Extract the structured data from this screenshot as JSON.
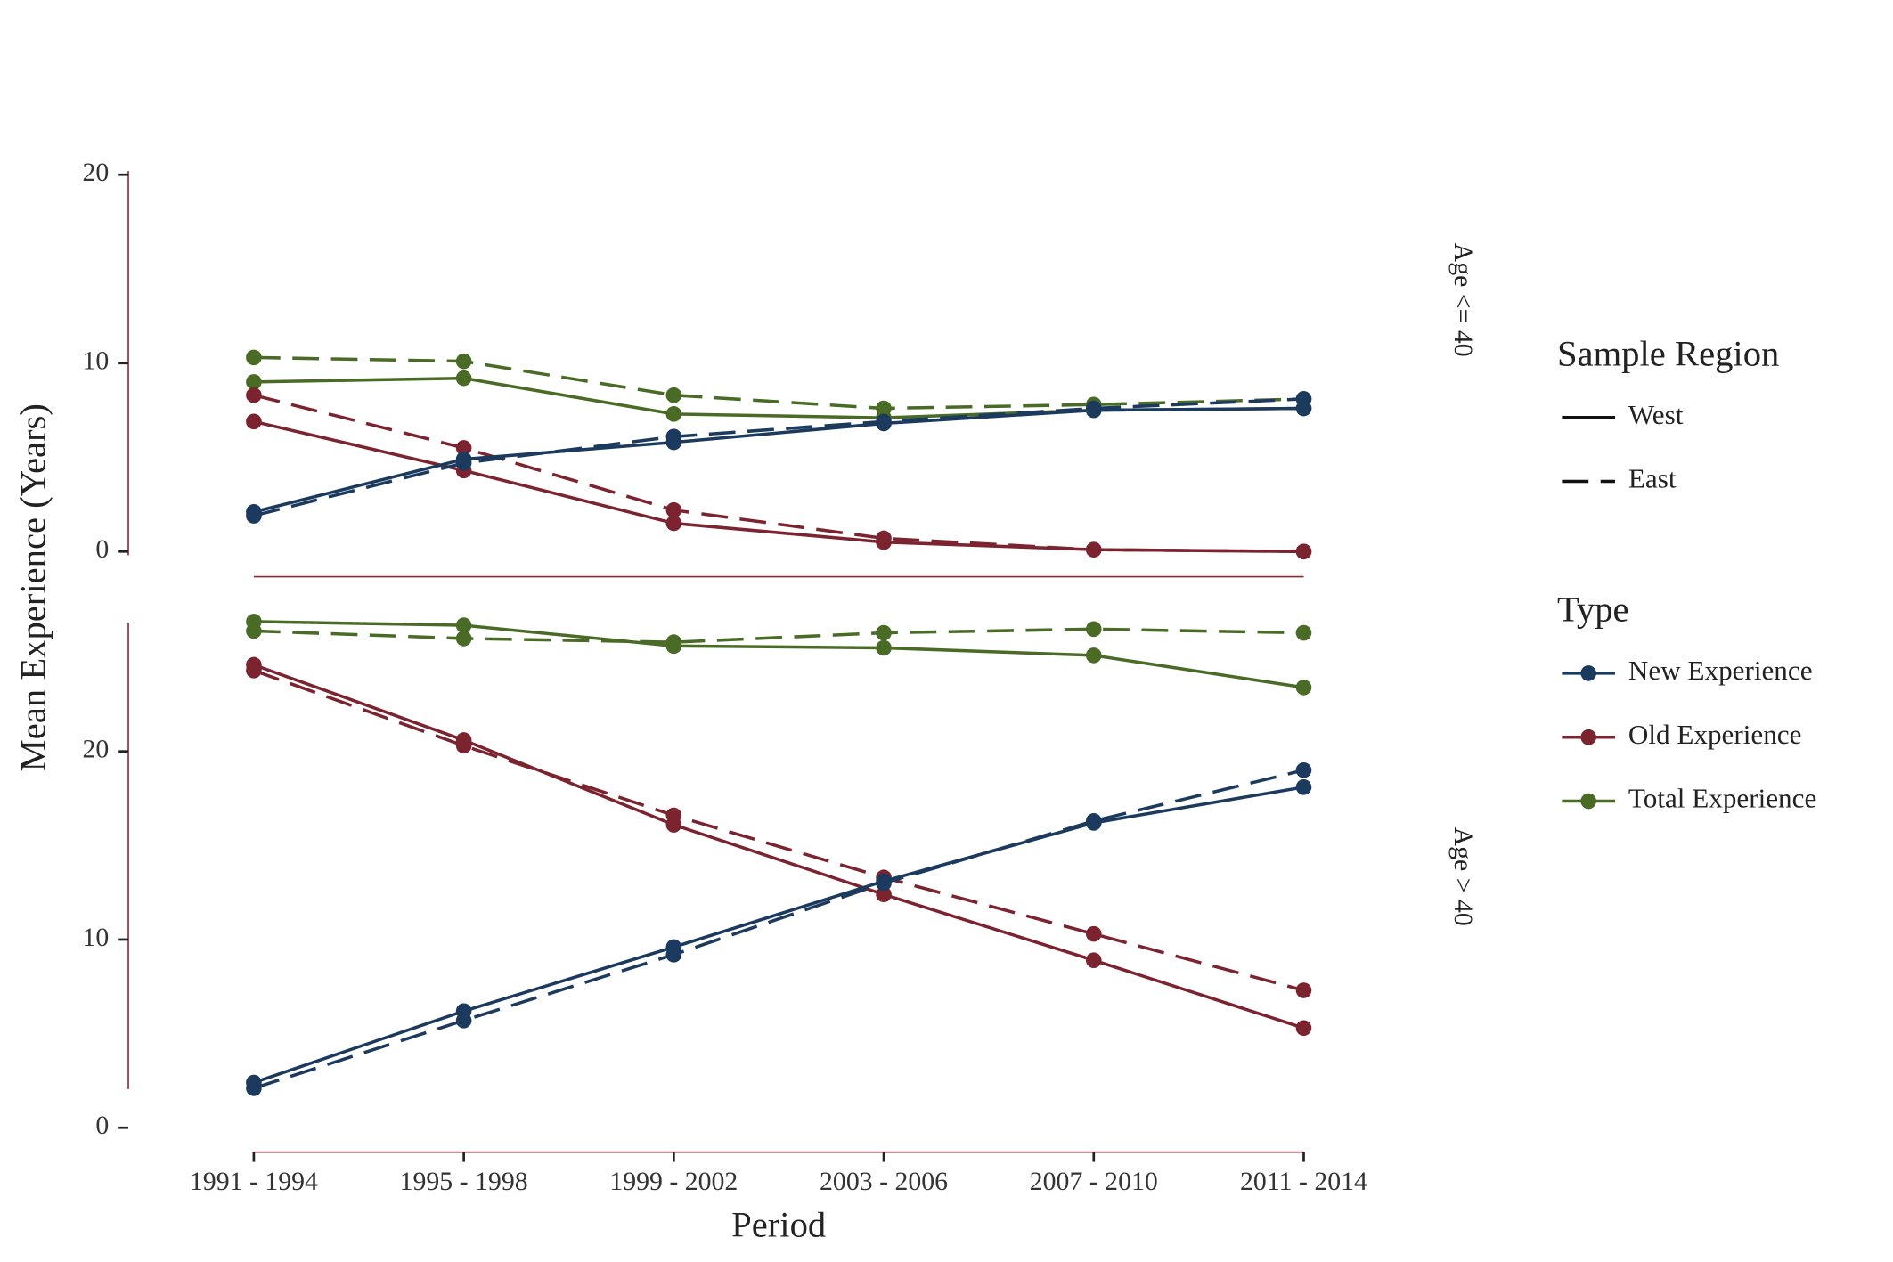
{
  "chart_data": {
    "type": "line",
    "x_label": "Period",
    "y_label": "Mean Experience (Years)",
    "categories": [
      "1991 - 1994",
      "1995 - 1998",
      "1999 - 2002",
      "2003 - 2006",
      "2007 - 2010",
      "2011 - 2014"
    ],
    "region_legend": {
      "title": "Sample Region",
      "entries": [
        {
          "name": "West",
          "dash": "solid"
        },
        {
          "name": "East",
          "dash": "dashed"
        }
      ]
    },
    "type_legend": {
      "title": "Type",
      "entries": [
        {
          "name": "New Experience",
          "color": "#1b3a5e"
        },
        {
          "name": "Old Experience",
          "color": "#7c2330"
        },
        {
          "name": "Total Experience",
          "color": "#4a6b26"
        }
      ]
    },
    "facets": [
      {
        "label": "Age <= 40",
        "ylim": [
          -1.4,
          23
        ],
        "yticks": [
          0,
          10,
          20
        ],
        "series": [
          {
            "color": "#4a6b26",
            "dash": "solid",
            "values": [
              9.0,
              9.2,
              7.3,
              7.1,
              7.5,
              7.6
            ]
          },
          {
            "color": "#4a6b26",
            "dash": "dashed",
            "values": [
              10.3,
              10.1,
              8.3,
              7.6,
              7.8,
              8.1
            ]
          },
          {
            "color": "#7c2330",
            "dash": "solid",
            "values": [
              6.9,
              4.3,
              1.5,
              0.5,
              0.1,
              0.0
            ]
          },
          {
            "color": "#7c2330",
            "dash": "dashed",
            "values": [
              8.3,
              5.5,
              2.2,
              0.7,
              0.1,
              0.0
            ]
          },
          {
            "color": "#1b3a5e",
            "dash": "solid",
            "values": [
              2.1,
              4.9,
              5.8,
              6.8,
              7.5,
              7.6
            ]
          },
          {
            "color": "#1b3a5e",
            "dash": "dashed",
            "values": [
              1.9,
              4.7,
              6.1,
              6.9,
              7.6,
              8.1
            ]
          }
        ]
      },
      {
        "label": "Age > 40",
        "ylim": [
          -1.3,
          28
        ],
        "yticks": [
          0,
          10,
          20
        ],
        "series": [
          {
            "color": "#4a6b26",
            "dash": "solid",
            "values": [
              26.9,
              26.7,
              25.6,
              25.5,
              25.1,
              23.4
            ]
          },
          {
            "color": "#4a6b26",
            "dash": "dashed",
            "values": [
              26.4,
              26.0,
              25.8,
              26.3,
              26.5,
              26.3
            ]
          },
          {
            "color": "#7c2330",
            "dash": "solid",
            "values": [
              24.6,
              20.6,
              16.1,
              12.4,
              8.9,
              5.3
            ]
          },
          {
            "color": "#7c2330",
            "dash": "dashed",
            "values": [
              24.3,
              20.3,
              16.6,
              13.3,
              10.3,
              7.3
            ]
          },
          {
            "color": "#1b3a5e",
            "dash": "solid",
            "values": [
              2.4,
              6.2,
              9.6,
              13.1,
              16.2,
              18.1
            ]
          },
          {
            "color": "#1b3a5e",
            "dash": "dashed",
            "values": [
              2.1,
              5.7,
              9.2,
              13.0,
              16.3,
              19.0
            ]
          }
        ]
      }
    ]
  }
}
